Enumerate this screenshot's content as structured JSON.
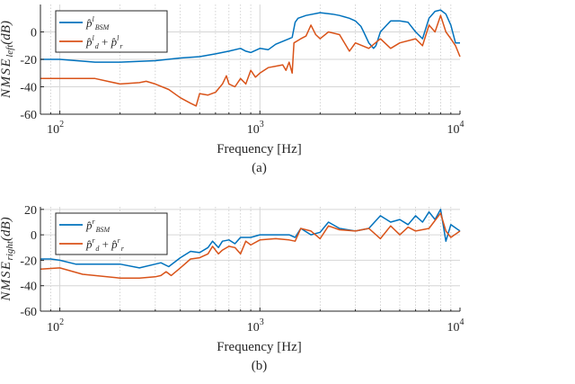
{
  "chart_data": [
    {
      "type": "line",
      "caption": "(a)",
      "xlabel": "Frequency [Hz]",
      "ylabel": {
        "base": "NMSE",
        "sub": "left",
        "unit": "(dB)"
      },
      "xscale": "log",
      "xlim": [
        80,
        10000
      ],
      "ylim": [
        -60,
        20
      ],
      "xticks": [
        100,
        1000,
        10000
      ],
      "xticklabels": [
        {
          "base": "10",
          "exp": "2"
        },
        {
          "base": "10",
          "exp": "3"
        },
        {
          "base": "10",
          "exp": "4"
        }
      ],
      "yticks": [
        -60,
        -40,
        -20,
        0
      ],
      "yticklabels": [
        "-60",
        "-40",
        "-20",
        "0"
      ],
      "grid": true,
      "legend_position": "top-left",
      "series": [
        {
          "name": "p̂ˡ_BSM",
          "legend": [
            {
              "t": "p̂",
              "sup": "l",
              "sub": "BSM"
            }
          ],
          "color": "#0072BD",
          "x": [
            80,
            100,
            150,
            200,
            300,
            400,
            500,
            600,
            700,
            800,
            850,
            900,
            1000,
            1100,
            1200,
            1400,
            1450,
            1500,
            1550,
            1700,
            2000,
            2300,
            2500,
            2800,
            3000,
            3200,
            3300,
            3500,
            3700,
            3800,
            4000,
            4300,
            4500,
            5000,
            5500,
            6000,
            6500,
            7000,
            7500,
            8000,
            8500,
            9000,
            9500,
            10000
          ],
          "y": [
            -20,
            -20,
            -22,
            -22,
            -21,
            -19,
            -18,
            -16,
            -14,
            -12,
            -14,
            -15,
            -12,
            -13,
            -9,
            -5,
            -4,
            7,
            10,
            12,
            14,
            13,
            12,
            10,
            8,
            4,
            0,
            -8,
            -12,
            -10,
            0,
            5,
            8,
            8,
            7,
            0,
            -5,
            10,
            15,
            16,
            13,
            5,
            -8,
            -8
          ]
        },
        {
          "name": "p̂ˡ_d + p̂ˡ_r",
          "legend": [
            {
              "t": "p̂",
              "sup": "l",
              "sub": "d"
            },
            {
              "t": " + "
            },
            {
              "t": "p̂",
              "sup": "l",
              "sub": "r"
            }
          ],
          "color": "#D95319",
          "x": [
            80,
            100,
            150,
            200,
            250,
            270,
            300,
            350,
            400,
            450,
            480,
            500,
            550,
            600,
            650,
            680,
            700,
            750,
            800,
            850,
            900,
            950,
            1000,
            1100,
            1200,
            1300,
            1350,
            1400,
            1450,
            1480,
            1600,
            1700,
            1800,
            1900,
            2000,
            2200,
            2500,
            2800,
            3000,
            3500,
            4000,
            4500,
            5000,
            6000,
            6500,
            7000,
            7500,
            8000,
            8500,
            9000,
            9500,
            10000
          ],
          "y": [
            -34,
            -34,
            -34,
            -38,
            -37,
            -36,
            -38,
            -42,
            -48,
            -52,
            -54,
            -45,
            -46,
            -44,
            -38,
            -32,
            -38,
            -40,
            -34,
            -38,
            -28,
            -33,
            -30,
            -26,
            -25,
            -24,
            -28,
            -22,
            -30,
            -8,
            -5,
            -3,
            5,
            -2,
            -5,
            0,
            -2,
            -14,
            -8,
            -12,
            -5,
            -12,
            -8,
            -5,
            -10,
            5,
            0,
            12,
            0,
            -5,
            -10,
            -18
          ]
        }
      ]
    },
    {
      "type": "line",
      "caption": "(b)",
      "xlabel": "Frequency [Hz]",
      "ylabel": {
        "base": "NMSE",
        "sub": "right",
        "unit": "(dB)"
      },
      "xscale": "log",
      "xlim": [
        80,
        10000
      ],
      "ylim": [
        -60,
        22
      ],
      "xticks": [
        100,
        1000,
        10000
      ],
      "xticklabels": [
        {
          "base": "10",
          "exp": "2"
        },
        {
          "base": "10",
          "exp": "3"
        },
        {
          "base": "10",
          "exp": "4"
        }
      ],
      "yticks": [
        -60,
        -40,
        -20,
        0,
        20
      ],
      "yticklabels": [
        "-60",
        "-40",
        "-20",
        "0",
        "20"
      ],
      "grid": true,
      "legend_position": "top-left",
      "series": [
        {
          "name": "p̂ʳ_BSM",
          "legend": [
            {
              "t": "p̂",
              "sup": "r",
              "sub": "BSM"
            }
          ],
          "color": "#0072BD",
          "x": [
            80,
            90,
            100,
            120,
            200,
            250,
            300,
            320,
            350,
            400,
            450,
            500,
            550,
            580,
            620,
            650,
            700,
            750,
            800,
            900,
            1000,
            1200,
            1400,
            1500,
            1600,
            1800,
            2000,
            2200,
            2500,
            3000,
            3500,
            4000,
            4500,
            5000,
            5500,
            6000,
            6500,
            7000,
            7500,
            8000,
            8500,
            9000,
            10000
          ],
          "y": [
            -19,
            -19,
            -20,
            -23,
            -23,
            -26,
            -23,
            -22,
            -25,
            -18,
            -13,
            -14,
            -10,
            -5,
            -10,
            -5,
            -4,
            -7,
            -2,
            -2,
            0,
            0,
            0,
            -2,
            5,
            0,
            2,
            10,
            5,
            3,
            5,
            15,
            10,
            12,
            8,
            15,
            10,
            18,
            12,
            20,
            -5,
            8,
            3
          ]
        },
        {
          "name": "p̂ʳ_d + p̂ʳ_r",
          "legend": [
            {
              "t": "p̂",
              "sup": "r",
              "sub": "d"
            },
            {
              "t": " + "
            },
            {
              "t": "p̂",
              "sup": "r",
              "sub": "r"
            }
          ],
          "color": "#D95319",
          "x": [
            80,
            100,
            130,
            200,
            250,
            300,
            320,
            340,
            360,
            400,
            450,
            500,
            550,
            580,
            620,
            650,
            700,
            750,
            800,
            850,
            900,
            1000,
            1200,
            1400,
            1500,
            1600,
            1800,
            2000,
            2200,
            2500,
            3000,
            3500,
            4000,
            4500,
            5000,
            5500,
            6000,
            7000,
            8000,
            8500,
            9000,
            10000
          ],
          "y": [
            -27,
            -26,
            -31,
            -34,
            -34,
            -33,
            -32,
            -29,
            -32,
            -26,
            -19,
            -18,
            -15,
            -9,
            -15,
            -12,
            -9,
            -10,
            -15,
            -5,
            -8,
            -4,
            -3,
            -4,
            -5,
            5,
            3,
            -3,
            7,
            4,
            3,
            5,
            -3,
            7,
            0,
            6,
            3,
            5,
            17,
            3,
            -2,
            3
          ]
        }
      ]
    }
  ]
}
